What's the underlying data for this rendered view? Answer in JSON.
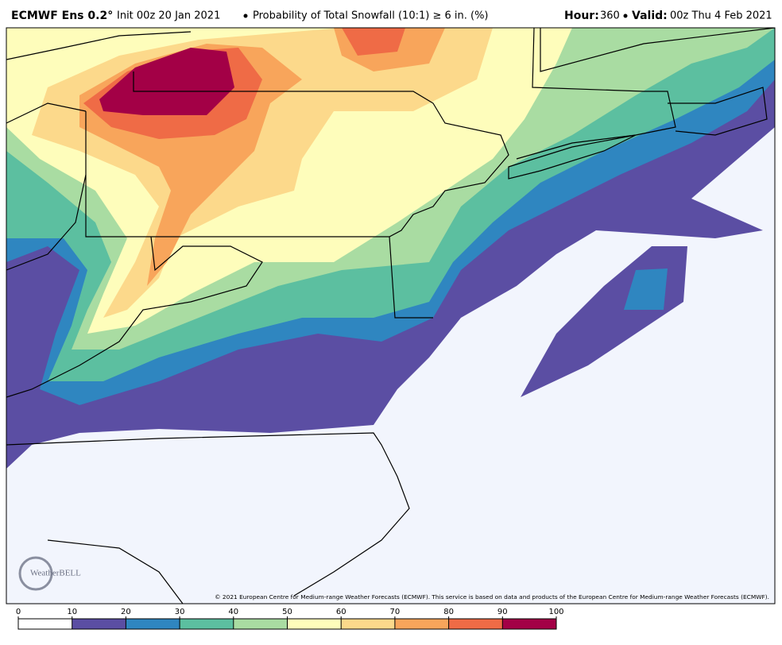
{
  "header": {
    "model": "ECMWF Ens 0.2°",
    "init": "Init 00z 20 Jan 2021",
    "product": "Probability of Total Snowfall (10:1) ≥ 6 in. (%)",
    "hour_label": "Hour:",
    "hour": "360",
    "valid_label": "Valid:",
    "valid": "00z Thu 4 Feb 2021"
  },
  "copyright": "© 2021 European Centre for Medium-range Weather Forecasts (ECMWF). This service is based on data and products of the European Centre for Medium-range Weather Forecasts (ECMWF).",
  "logo": "WeatherBELL",
  "colorbar": {
    "ticks": [
      0,
      10,
      20,
      30,
      40,
      50,
      60,
      70,
      80,
      90,
      100
    ],
    "colors": [
      "#ffffff",
      "#5b4ea3",
      "#2f86c0",
      "#5cbfa0",
      "#a9dca2",
      "#fefdbb",
      "#fcd98b",
      "#f8a55b",
      "#ef6b46",
      "#a30046"
    ]
  }
}
